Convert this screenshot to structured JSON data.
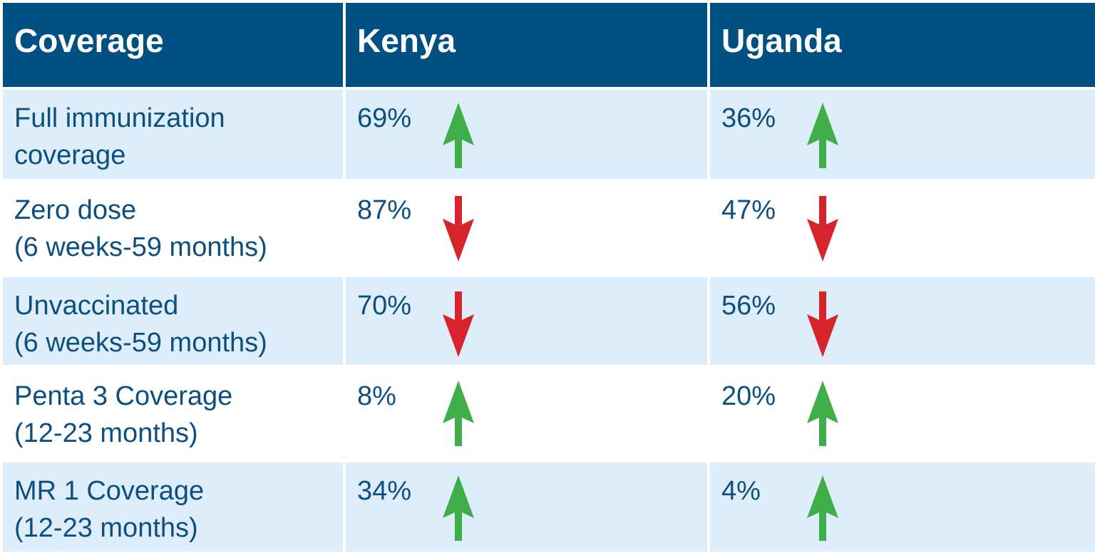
{
  "chart_data": {
    "type": "table",
    "columns": [
      "Coverage",
      "Kenya",
      "Uganda"
    ],
    "rows": [
      {
        "label": "Full immunization",
        "sublabel": "coverage",
        "shade": true,
        "kenya": {
          "value": "69%",
          "trend": "up"
        },
        "uganda": {
          "value": "36%",
          "trend": "up"
        }
      },
      {
        "label": "Zero dose",
        "sublabel": "(6 weeks-59 months)",
        "shade": false,
        "kenya": {
          "value": "87%",
          "trend": "down"
        },
        "uganda": {
          "value": "47%",
          "trend": "down"
        }
      },
      {
        "label": "Unvaccinated",
        "sublabel": "(6 weeks-59 months)",
        "shade": true,
        "kenya": {
          "value": "70%",
          "trend": "down"
        },
        "uganda": {
          "value": "56%",
          "trend": "down"
        }
      },
      {
        "label": "Penta 3 Coverage",
        "sublabel": "(12-23 months)",
        "shade": false,
        "kenya": {
          "value": "8%",
          "trend": "up"
        },
        "uganda": {
          "value": "20%",
          "trend": "up"
        }
      },
      {
        "label": "MR 1 Coverage",
        "sublabel": "(12-23 months)",
        "shade": true,
        "kenya": {
          "value": "34%",
          "trend": "up"
        },
        "uganda": {
          "value": "4%",
          "trend": "up"
        }
      }
    ]
  },
  "colors": {
    "header": "#005082",
    "shade": "#ddeefa",
    "text": "#0d4f80",
    "up": "#3fae49",
    "down": "#d7232b"
  }
}
